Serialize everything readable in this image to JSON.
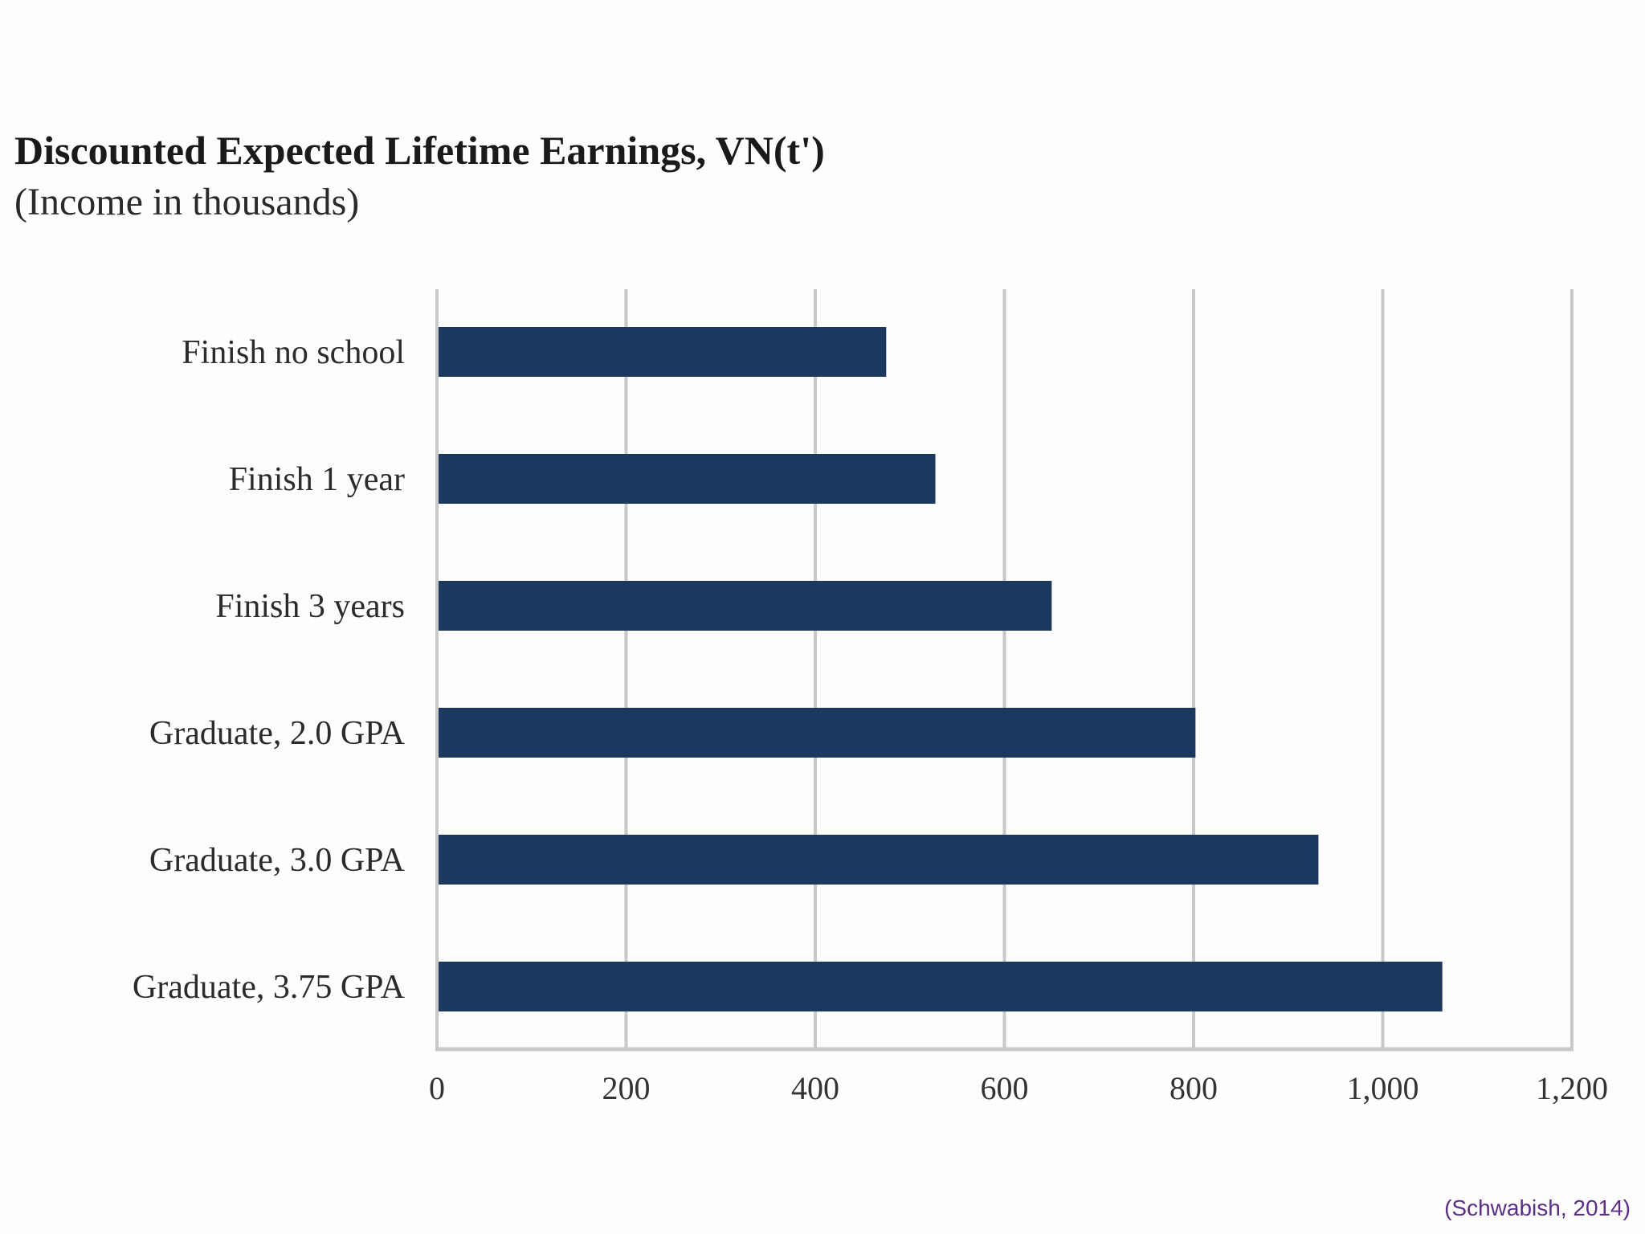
{
  "chart_data": {
    "type": "bar",
    "orientation": "horizontal",
    "title": "Discounted Expected Lifetime Earnings, VN(t')",
    "subtitle": "(Income in thousands)",
    "categories": [
      "Finish no school",
      "Finish 1 year",
      "Finish 3 years",
      "Graduate, 2.0 GPA",
      "Graduate, 3.0 GPA",
      "Graduate, 3.75 GPA"
    ],
    "values": [
      475,
      527,
      650,
      802,
      932,
      1063
    ],
    "xlim": [
      0,
      1200
    ],
    "xticks": [
      0,
      200,
      400,
      600,
      800,
      1000,
      1200
    ],
    "xtick_labels": [
      "0",
      "200",
      "400",
      "600",
      "800",
      "1,000",
      "1,200"
    ],
    "xlabel": "",
    "ylabel": "",
    "grid": true,
    "bar_color": "#1c385f",
    "grid_color": "#c8c8c8"
  },
  "source": "(Schwabish, 2014)"
}
